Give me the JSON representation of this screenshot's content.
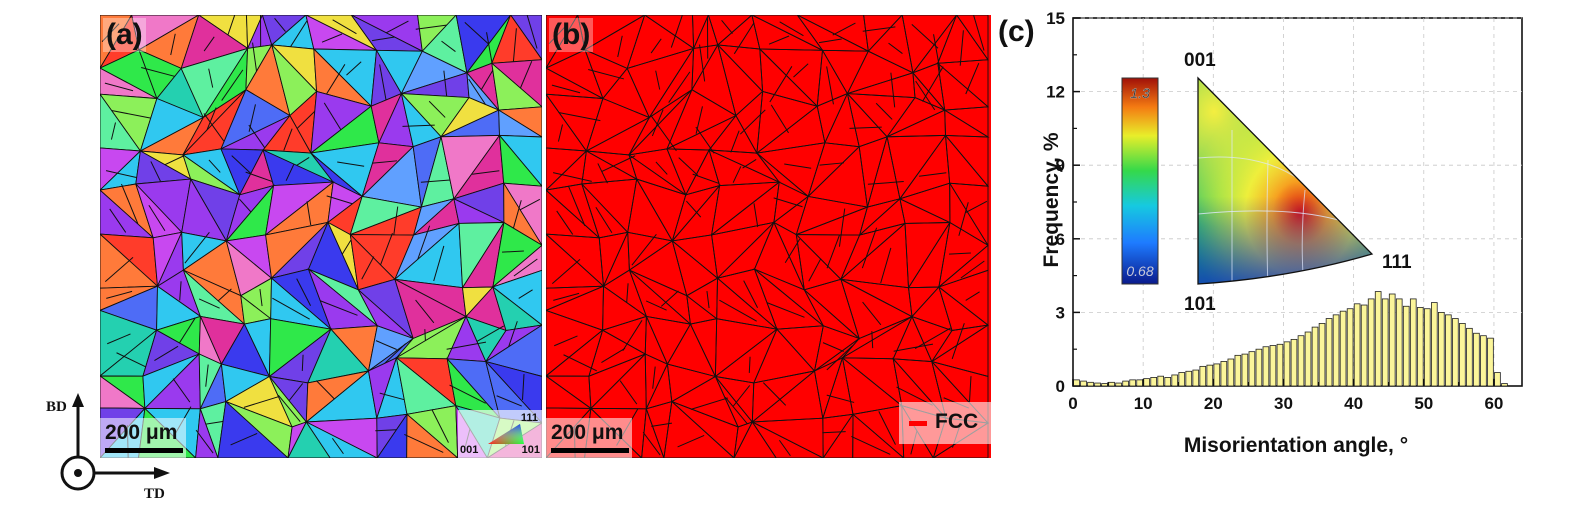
{
  "panel_a": {
    "label": "(a)",
    "scalebar": "200 μm",
    "ipf_key": {
      "top": "111",
      "left": "001",
      "right": "101"
    }
  },
  "panel_b": {
    "label": "(b)",
    "scalebar": "200 μm",
    "legend": "FCC",
    "colors": {
      "fcc": "#ff0000",
      "boundary": "#000000"
    }
  },
  "axes_triad": {
    "vertical": "BD",
    "horizontal": "TD"
  },
  "panel_c": {
    "label": "(c)",
    "inset": {
      "colorbar_max": "1.3",
      "colorbar_min": "0.68",
      "corner_001": "001",
      "corner_101": "101",
      "corner_111": "111"
    }
  },
  "chart_data": {
    "type": "bar",
    "title": "",
    "xlabel": "Misorientation angle, °",
    "ylabel": "Frequency, %",
    "xlim": [
      0,
      64
    ],
    "ylim": [
      0,
      15
    ],
    "xticks": [
      0,
      10,
      20,
      30,
      40,
      50,
      60
    ],
    "yticks": [
      0,
      3,
      6,
      9,
      12,
      15
    ],
    "grid": true,
    "bar_color": "#fbf59a",
    "bin_width": 1,
    "x": [
      0.5,
      1.5,
      2.5,
      3.5,
      4.5,
      5.5,
      6.5,
      7.5,
      8.5,
      9.5,
      10.5,
      11.5,
      12.5,
      13.5,
      14.5,
      15.5,
      16.5,
      17.5,
      18.5,
      19.5,
      20.5,
      21.5,
      22.5,
      23.5,
      24.5,
      25.5,
      26.5,
      27.5,
      28.5,
      29.5,
      30.5,
      31.5,
      32.5,
      33.5,
      34.5,
      35.5,
      36.5,
      37.5,
      38.5,
      39.5,
      40.5,
      41.5,
      42.5,
      43.5,
      44.5,
      45.5,
      46.5,
      47.5,
      48.5,
      49.5,
      50.5,
      51.5,
      52.5,
      53.5,
      54.5,
      55.5,
      56.5,
      57.5,
      58.5,
      59.5,
      60.5,
      61.5
    ],
    "values": [
      0.25,
      0.2,
      0.15,
      0.12,
      0.1,
      0.15,
      0.12,
      0.2,
      0.25,
      0.25,
      0.3,
      0.35,
      0.4,
      0.35,
      0.45,
      0.55,
      0.6,
      0.65,
      0.8,
      0.85,
      0.9,
      1.0,
      1.1,
      1.25,
      1.3,
      1.4,
      1.5,
      1.6,
      1.65,
      1.7,
      1.8,
      1.9,
      2.05,
      2.2,
      2.4,
      2.55,
      2.75,
      2.9,
      3.05,
      3.15,
      3.35,
      3.3,
      3.55,
      3.85,
      3.55,
      3.75,
      3.55,
      3.25,
      3.55,
      3.2,
      3.15,
      3.4,
      3.0,
      2.9,
      2.75,
      2.55,
      2.35,
      2.15,
      2.05,
      1.95,
      0.55,
      0.1
    ]
  }
}
